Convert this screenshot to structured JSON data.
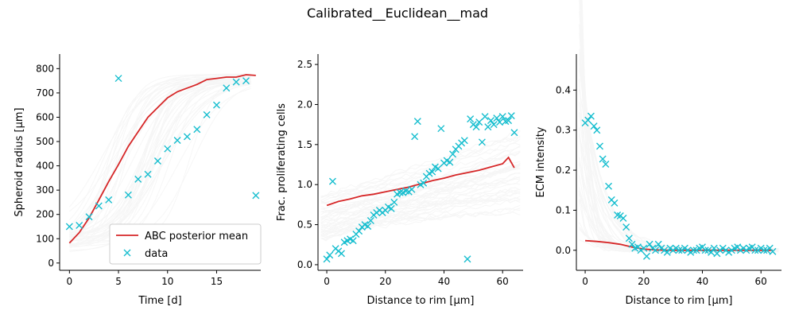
{
  "figure": {
    "title": "Calibrated__Euclidean__mad"
  },
  "legend": {
    "mean_label": "ABC posterior mean",
    "data_label": "data",
    "placement": "lower-right"
  },
  "colors": {
    "mean": "#d62728",
    "data": "#17becf",
    "samples": "#bbbbbb",
    "axis": "#000000"
  },
  "chart_data": [
    {
      "type": "line",
      "xlabel": "Time [d]",
      "ylabel": "Spheroid radius [μm]",
      "xlim": [
        -1,
        19.5
      ],
      "ylim": [
        -30,
        860
      ],
      "xticks": [
        0,
        5,
        10,
        15
      ],
      "yticks": [
        0,
        100,
        200,
        300,
        400,
        500,
        600,
        700,
        800
      ],
      "legend": true,
      "series": [
        {
          "name": "ABC posterior mean",
          "x": [
            0,
            1,
            2,
            3,
            4,
            5,
            6,
            7,
            8,
            9,
            10,
            11,
            12,
            13,
            14,
            15,
            16,
            17,
            18,
            19
          ],
          "y": [
            82,
            125,
            185,
            260,
            335,
            405,
            480,
            540,
            600,
            640,
            680,
            705,
            720,
            735,
            755,
            760,
            765,
            765,
            775,
            772
          ]
        },
        {
          "name": "data",
          "x": [
            0,
            1,
            2,
            3,
            4,
            5,
            6,
            7,
            8,
            9,
            10,
            11,
            12,
            13,
            14,
            15,
            16,
            17,
            18,
            19
          ],
          "y": [
            150,
            155,
            190,
            235,
            260,
            760,
            280,
            345,
            365,
            420,
            470,
            505,
            520,
            550,
            610,
            650,
            720,
            745,
            750,
            278
          ]
        }
      ]
    },
    {
      "type": "line",
      "xlabel": "Distance to rim [μm]",
      "ylabel": "Frac. proliferating cells",
      "xlim": [
        -3,
        67
      ],
      "ylim": [
        -0.07,
        2.63
      ],
      "xticks": [
        0,
        20,
        40,
        60
      ],
      "yticks": [
        0.0,
        0.5,
        1.0,
        1.5,
        2.0,
        2.5
      ],
      "legend": false,
      "series": [
        {
          "name": "ABC posterior mean",
          "x": [
            0,
            4,
            8,
            12,
            16,
            20,
            24,
            28,
            32,
            36,
            40,
            44,
            48,
            52,
            56,
            60,
            62,
            64
          ],
          "y": [
            0.74,
            0.79,
            0.82,
            0.86,
            0.88,
            0.91,
            0.94,
            0.97,
            1.01,
            1.05,
            1.08,
            1.12,
            1.15,
            1.18,
            1.22,
            1.26,
            1.34,
            1.21
          ]
        },
        {
          "name": "data",
          "x": [
            0,
            1,
            2,
            3,
            4,
            5,
            6,
            7,
            8,
            9,
            10,
            11,
            12,
            13,
            14,
            15,
            16,
            17,
            18,
            19,
            20,
            21,
            22,
            23,
            24,
            25,
            26,
            27,
            28,
            29,
            30,
            31,
            32,
            33,
            34,
            35,
            36,
            37,
            38,
            39,
            40,
            41,
            42,
            43,
            44,
            45,
            46,
            47,
            48,
            49,
            50,
            51,
            52,
            53,
            54,
            55,
            56,
            57,
            58,
            59,
            60,
            61,
            62,
            63,
            64
          ],
          "y": [
            0.07,
            0.12,
            1.04,
            0.2,
            0.17,
            0.14,
            0.28,
            0.3,
            0.32,
            0.3,
            0.38,
            0.42,
            0.47,
            0.5,
            0.48,
            0.55,
            0.62,
            0.65,
            0.68,
            0.65,
            0.68,
            0.72,
            0.7,
            0.78,
            0.88,
            0.9,
            0.9,
            0.92,
            0.91,
            0.94,
            1.6,
            1.79,
            1.0,
            1.02,
            1.1,
            1.14,
            1.16,
            1.22,
            1.2,
            1.7,
            1.27,
            1.3,
            1.28,
            1.38,
            1.44,
            1.48,
            1.52,
            1.55,
            0.07,
            1.82,
            1.75,
            1.72,
            1.78,
            1.53,
            1.85,
            1.72,
            1.8,
            1.75,
            1.83,
            1.78,
            1.85,
            1.79,
            1.8,
            1.86,
            1.65
          ]
        }
      ]
    },
    {
      "type": "line",
      "xlabel": "Distance to rim [μm]",
      "ylabel": "ECM intensity",
      "xlim": [
        -3,
        67
      ],
      "ylim": [
        -0.05,
        0.49
      ],
      "xticks": [
        0,
        20,
        40,
        60
      ],
      "yticks": [
        0.0,
        0.1,
        0.2,
        0.3,
        0.4
      ],
      "legend": false,
      "series": [
        {
          "name": "ABC posterior mean",
          "x": [
            0,
            4,
            8,
            12,
            16,
            20,
            24,
            28,
            32,
            40,
            50,
            60,
            64
          ],
          "y": [
            0.024,
            0.022,
            0.019,
            0.015,
            0.008,
            0.003,
            0.001,
            0.0,
            0.0,
            0.0,
            0.0,
            0.0,
            0.0
          ]
        },
        {
          "name": "data",
          "x": [
            0,
            1,
            2,
            3,
            4,
            5,
            6,
            7,
            8,
            9,
            10,
            11,
            12,
            13,
            14,
            15,
            16,
            17,
            18,
            19,
            20,
            21,
            22,
            23,
            24,
            25,
            26,
            27,
            28,
            29,
            30,
            31,
            32,
            33,
            34,
            35,
            36,
            37,
            38,
            39,
            40,
            41,
            42,
            43,
            44,
            45,
            46,
            47,
            48,
            49,
            50,
            51,
            52,
            53,
            54,
            55,
            56,
            57,
            58,
            59,
            60,
            61,
            62,
            63,
            64
          ],
          "y": [
            0.318,
            0.325,
            0.335,
            0.31,
            0.3,
            0.26,
            0.228,
            0.215,
            0.16,
            0.126,
            0.118,
            0.088,
            0.086,
            0.08,
            0.058,
            0.03,
            0.015,
            0.005,
            0.008,
            0.0,
            0.005,
            -0.015,
            0.015,
            0.005,
            0.0,
            0.015,
            0.005,
            0.0,
            -0.005,
            0.005,
            0.0,
            0.005,
            0.0,
            0.0,
            0.005,
            0.0,
            -0.005,
            0.0,
            0.0,
            0.005,
            0.008,
            0.0,
            0.0,
            -0.005,
            0.005,
            -0.008,
            0.0,
            0.005,
            0.0,
            -0.005,
            0.0,
            0.005,
            0.008,
            0.0,
            0.005,
            0.0,
            0.005,
            0.008,
            0.0,
            0.0,
            0.005,
            0.0,
            0.0,
            0.005,
            -0.003
          ]
        }
      ]
    }
  ]
}
